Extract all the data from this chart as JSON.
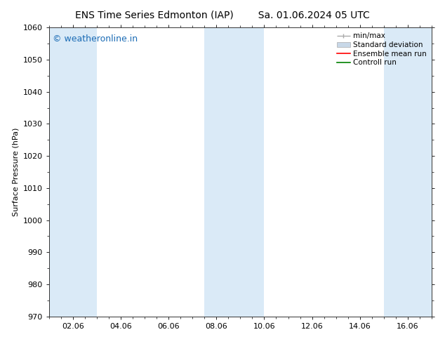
{
  "title_left": "ENS Time Series Edmonton (IAP)",
  "title_right": "Sa. 01.06.2024 05 UTC",
  "ylabel": "Surface Pressure (hPa)",
  "ylim": [
    970,
    1060
  ],
  "yticks": [
    970,
    980,
    990,
    1000,
    1010,
    1020,
    1030,
    1040,
    1050,
    1060
  ],
  "xtick_days": [
    2,
    4,
    6,
    8,
    10,
    12,
    14,
    16
  ],
  "xtick_labels": [
    "02.06",
    "04.06",
    "06.06",
    "08.06",
    "10.06",
    "12.06",
    "14.06",
    "16.06"
  ],
  "xlim_start_day": 1,
  "xlim_end_day": 17,
  "background_color": "#ffffff",
  "plot_bg_color": "#ffffff",
  "shaded_bands": [
    {
      "x_start_day": 1.0,
      "x_end_day": 3.0
    },
    {
      "x_start_day": 7.5,
      "x_end_day": 10.0
    },
    {
      "x_start_day": 15.0,
      "x_end_day": 17.0
    }
  ],
  "shaded_color": "#daeaf7",
  "watermark_text": "© weatheronline.in",
  "watermark_color": "#1a6bb5",
  "legend_labels": [
    "min/max",
    "Standard deviation",
    "Ensemble mean run",
    "Controll run"
  ],
  "minmax_color": "#aaaaaa",
  "std_color": "#c8d8e8",
  "ensemble_color": "#ff0000",
  "control_color": "#008000",
  "title_fontsize": 10,
  "axis_label_fontsize": 8,
  "tick_fontsize": 8,
  "watermark_fontsize": 9,
  "legend_fontsize": 7.5
}
